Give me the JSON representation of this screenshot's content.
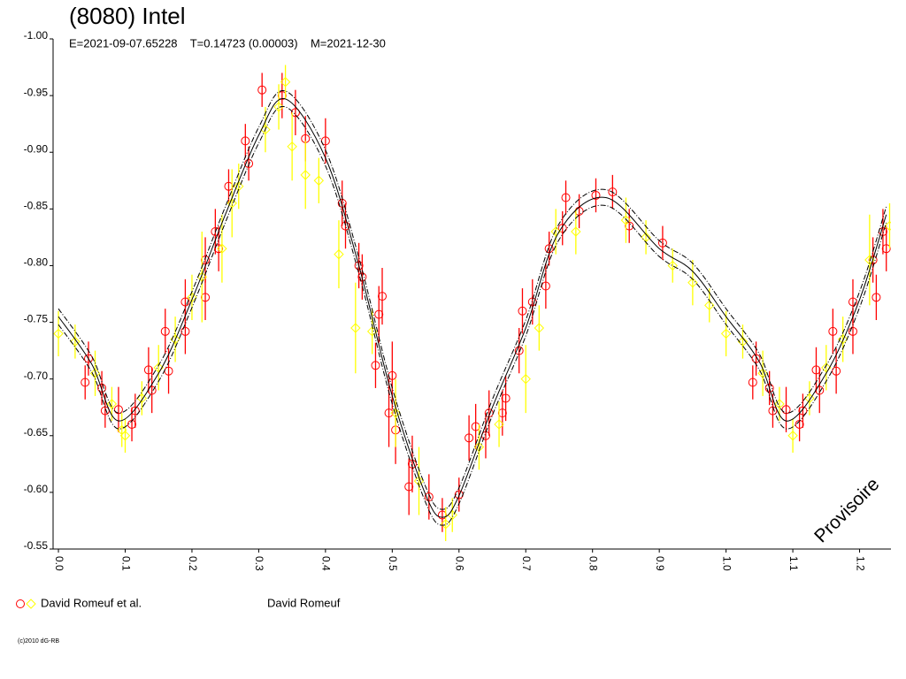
{
  "chart_data": {
    "type": "scatter",
    "title": "(8080) Intel",
    "subtitle": "E=2021-09-07.65228    T=0.14723 (0.00003)    M=2021-12-30",
    "legend_label": "David Romeuf et al.",
    "observer": "David Romeuf",
    "watermark": "Provisoire",
    "copyright": "(c)2010 dG-RB",
    "xlim": [
      -0.008,
      1.247
    ],
    "ylim": [
      -0.55,
      -1.0
    ],
    "xticks": [
      {
        "value": 0,
        "label": "0.0"
      },
      0.1,
      0.2,
      0.3,
      0.4,
      0.5,
      0.6,
      0.7,
      0.8,
      0.9,
      {
        "value": 1,
        "label": "1.0"
      },
      1.1,
      1.2
    ],
    "yticks": [
      {
        "value": -1,
        "label": "-1.00"
      },
      -0.95,
      {
        "value": -0.9,
        "label": "-0.90"
      },
      -0.85,
      {
        "value": -0.8,
        "label": "-0.80"
      },
      -0.75,
      {
        "value": -0.7,
        "label": "-0.70"
      },
      -0.65,
      {
        "value": -0.6,
        "label": "-0.60"
      },
      -0.55
    ],
    "series": [
      {
        "marker": "circle",
        "color": "#ff0000",
        "x": [
          0.04,
          0.045,
          0.065,
          0.07,
          0.09,
          0.11,
          0.115,
          0.135,
          0.14,
          0.16,
          0.165,
          0.19,
          0.19,
          0.22,
          0.22,
          0.235,
          0.24,
          0.255,
          0.28,
          0.285,
          0.305,
          0.335,
          0.355,
          0.37,
          0.4,
          0.425,
          0.43,
          0.45,
          0.455,
          0.475,
          0.48,
          0.485,
          0.495,
          0.5,
          0.505,
          0.525,
          0.53,
          0.555,
          0.575,
          0.6,
          0.615,
          0.625,
          0.64,
          0.645,
          0.665,
          0.67,
          0.69,
          0.695,
          0.71,
          0.73,
          0.735,
          0.755,
          0.76,
          0.78,
          0.805,
          0.83,
          0.855,
          0.905,
          1.04,
          1.045,
          1.065,
          1.07,
          1.09,
          1.11,
          1.115,
          1.135,
          1.14,
          1.16,
          1.165,
          1.19,
          1.19,
          1.22,
          1.225,
          1.235,
          1.24
        ],
        "values": [
          -0.697,
          -0.718,
          -0.692,
          -0.672,
          -0.673,
          -0.66,
          -0.672,
          -0.708,
          -0.69,
          -0.742,
          -0.707,
          -0.768,
          -0.742,
          -0.805,
          -0.772,
          -0.83,
          -0.815,
          -0.87,
          -0.91,
          -0.89,
          -0.955,
          -0.95,
          -0.935,
          -0.912,
          -0.91,
          -0.855,
          -0.835,
          -0.8,
          -0.79,
          -0.712,
          -0.757,
          -0.773,
          -0.67,
          -0.703,
          -0.655,
          -0.605,
          -0.625,
          -0.596,
          -0.58,
          -0.598,
          -0.648,
          -0.658,
          -0.65,
          -0.67,
          -0.67,
          -0.683,
          -0.725,
          -0.76,
          -0.768,
          -0.782,
          -0.815,
          -0.833,
          -0.86,
          -0.848,
          -0.862,
          -0.865,
          -0.835,
          -0.82,
          -0.697,
          -0.718,
          -0.692,
          -0.672,
          -0.673,
          -0.66,
          -0.672,
          -0.708,
          -0.69,
          -0.742,
          -0.707,
          -0.768,
          -0.742,
          -0.805,
          -0.772,
          -0.83,
          -0.815
        ],
        "errors": [
          0.015,
          0.015,
          0.015,
          0.015,
          0.02,
          0.015,
          0.015,
          0.02,
          0.02,
          0.02,
          0.02,
          0.02,
          0.02,
          0.02,
          0.02,
          0.02,
          0.02,
          0.015,
          0.015,
          0.015,
          0.015,
          0.02,
          0.02,
          0.02,
          0.02,
          0.02,
          0.02,
          0.02,
          0.02,
          0.02,
          0.025,
          0.025,
          0.03,
          0.03,
          0.03,
          0.025,
          0.025,
          0.02,
          0.015,
          0.015,
          0.02,
          0.02,
          0.02,
          0.02,
          0.02,
          0.02,
          0.02,
          0.02,
          0.02,
          0.02,
          0.015,
          0.015,
          0.015,
          0.015,
          0.015,
          0.015,
          0.015,
          0.015,
          0.015,
          0.015,
          0.015,
          0.015,
          0.02,
          0.015,
          0.015,
          0.02,
          0.02,
          0.02,
          0.02,
          0.02,
          0.02,
          0.02,
          0.02,
          0.02,
          0.02
        ]
      },
      {
        "marker": "diamond",
        "color": "#ffff00",
        "x": [
          0.0,
          0.025,
          0.055,
          0.08,
          0.095,
          0.1,
          0.125,
          0.15,
          0.175,
          0.2,
          0.215,
          0.245,
          0.26,
          0.27,
          0.31,
          0.33,
          0.34,
          0.35,
          0.37,
          0.39,
          0.42,
          0.445,
          0.47,
          0.505,
          0.54,
          0.58,
          0.59,
          0.63,
          0.66,
          0.7,
          0.72,
          0.745,
          0.775,
          0.85,
          0.88,
          0.92,
          0.95,
          0.975,
          1.0,
          1.025,
          1.055,
          1.08,
          1.1,
          1.125,
          1.15,
          1.175,
          1.215,
          1.245
        ],
        "values": [
          -0.74,
          -0.733,
          -0.705,
          -0.678,
          -0.655,
          -0.65,
          -0.683,
          -0.71,
          -0.735,
          -0.772,
          -0.79,
          -0.815,
          -0.855,
          -0.87,
          -0.92,
          -0.94,
          -0.962,
          -0.905,
          -0.88,
          -0.875,
          -0.81,
          -0.745,
          -0.742,
          -0.67,
          -0.61,
          -0.572,
          -0.58,
          -0.64,
          -0.66,
          -0.7,
          -0.745,
          -0.83,
          -0.83,
          -0.84,
          -0.825,
          -0.8,
          -0.785,
          -0.765,
          -0.74,
          -0.733,
          -0.705,
          -0.678,
          -0.65,
          -0.683,
          -0.71,
          -0.735,
          -0.805,
          -0.835
        ],
        "errors": [
          0.02,
          0.015,
          0.02,
          0.015,
          0.015,
          0.015,
          0.015,
          0.02,
          0.02,
          0.02,
          0.04,
          0.03,
          0.03,
          0.02,
          0.02,
          0.02,
          0.015,
          0.03,
          0.03,
          0.02,
          0.03,
          0.04,
          0.02,
          0.03,
          0.03,
          0.015,
          0.015,
          0.02,
          0.02,
          0.03,
          0.02,
          0.02,
          0.02,
          0.02,
          0.015,
          0.015,
          0.02,
          0.015,
          0.02,
          0.015,
          0.02,
          0.015,
          0.015,
          0.015,
          0.02,
          0.02,
          0.04,
          0.02
        ]
      },
      {
        "marker": "line",
        "dash": "solid",
        "color": "#000000",
        "x": [
          0,
          0.05,
          0.09,
          0.15,
          0.2,
          0.25,
          0.3,
          0.34,
          0.4,
          0.45,
          0.5,
          0.55,
          0.575,
          0.6,
          0.65,
          0.7,
          0.75,
          0.82,
          0.9,
          0.95,
          1.0,
          1.05,
          1.09,
          1.15,
          1.2,
          1.24
        ],
        "values": [
          -0.755,
          -0.713,
          -0.663,
          -0.705,
          -0.77,
          -0.845,
          -0.915,
          -0.947,
          -0.895,
          -0.8,
          -0.685,
          -0.598,
          -0.578,
          -0.597,
          -0.675,
          -0.745,
          -0.83,
          -0.86,
          -0.815,
          -0.795,
          -0.755,
          -0.715,
          -0.663,
          -0.705,
          -0.77,
          -0.845
        ]
      },
      {
        "marker": "line",
        "dash": "dashdot",
        "color": "#000000",
        "x": [
          0,
          0.05,
          0.09,
          0.15,
          0.2,
          0.25,
          0.3,
          0.34,
          0.4,
          0.45,
          0.5,
          0.55,
          0.575,
          0.6,
          0.65,
          0.7,
          0.75,
          0.82,
          0.9,
          0.95,
          1.0,
          1.05,
          1.09,
          1.15,
          1.2,
          1.24
        ],
        "values": [
          -0.762,
          -0.72,
          -0.67,
          -0.712,
          -0.777,
          -0.852,
          -0.922,
          -0.954,
          -0.902,
          -0.807,
          -0.692,
          -0.605,
          -0.585,
          -0.604,
          -0.682,
          -0.752,
          -0.837,
          -0.867,
          -0.822,
          -0.802,
          -0.762,
          -0.722,
          -0.67,
          -0.712,
          -0.777,
          -0.852
        ]
      },
      {
        "marker": "line",
        "dash": "dashdot",
        "color": "#000000",
        "x": [
          0,
          0.05,
          0.09,
          0.15,
          0.2,
          0.25,
          0.3,
          0.34,
          0.4,
          0.45,
          0.5,
          0.55,
          0.575,
          0.6,
          0.65,
          0.7,
          0.75,
          0.82,
          0.9,
          0.95,
          1.0,
          1.05,
          1.09,
          1.15,
          1.2,
          1.24
        ],
        "values": [
          -0.748,
          -0.706,
          -0.656,
          -0.698,
          -0.763,
          -0.838,
          -0.908,
          -0.94,
          -0.888,
          -0.793,
          -0.678,
          -0.591,
          -0.571,
          -0.59,
          -0.668,
          -0.738,
          -0.823,
          -0.853,
          -0.808,
          -0.788,
          -0.748,
          -0.708,
          -0.656,
          -0.698,
          -0.763,
          -0.838
        ]
      }
    ]
  }
}
